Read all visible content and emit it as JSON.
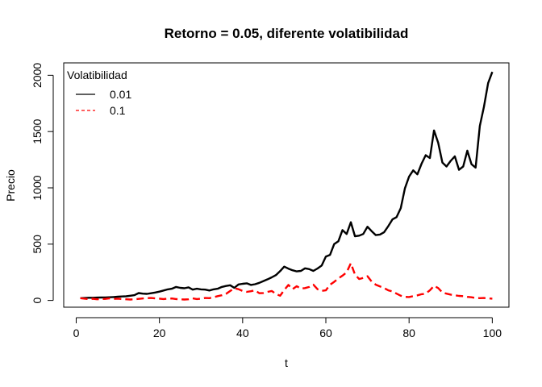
{
  "chart_data": {
    "type": "line",
    "title": "Retorno = 0.05, diferente volatibilidad",
    "xlabel": "t",
    "ylabel": "Precio",
    "xlim": [
      -3.0,
      104.0
    ],
    "ylim": [
      -60,
      2110
    ],
    "xticks": [
      0,
      20,
      40,
      60,
      80,
      100
    ],
    "yticks": [
      0,
      500,
      1000,
      1500,
      2000
    ],
    "grid": false,
    "legend": {
      "title": "Volatibilidad",
      "position": "top-left"
    },
    "series": [
      {
        "name": "0.01",
        "color": "#000000",
        "line_style": "solid",
        "x": [
          1,
          2,
          3,
          4,
          5,
          6,
          7,
          8,
          9,
          10,
          11,
          12,
          13,
          14,
          15,
          16,
          17,
          18,
          19,
          20,
          21,
          22,
          23,
          24,
          25,
          26,
          27,
          28,
          29,
          30,
          31,
          32,
          33,
          34,
          35,
          36,
          37,
          38,
          39,
          40,
          41,
          42,
          43,
          44,
          45,
          46,
          47,
          48,
          49,
          50,
          51,
          52,
          53,
          54,
          55,
          56,
          57,
          58,
          59,
          60,
          61,
          62,
          63,
          64,
          65,
          66,
          67,
          68,
          69,
          70,
          71,
          72,
          73,
          74,
          75,
          76,
          77,
          78,
          79,
          80,
          81,
          82,
          83,
          84,
          85,
          86,
          87,
          88,
          89,
          90,
          91,
          92,
          93,
          94,
          95,
          96,
          97,
          98,
          99,
          100
        ],
        "values": [
          20,
          22,
          24,
          24,
          25,
          26,
          27,
          28,
          30,
          33,
          35,
          37,
          42,
          47,
          65,
          60,
          58,
          64,
          70,
          78,
          88,
          98,
          104,
          120,
          112,
          108,
          116,
          96,
          104,
          98,
          96,
          88,
          98,
          104,
          120,
          128,
          135,
          112,
          142,
          148,
          152,
          138,
          144,
          156,
          172,
          188,
          205,
          225,
          260,
          300,
          282,
          268,
          258,
          262,
          285,
          278,
          262,
          284,
          310,
          390,
          405,
          500,
          525,
          625,
          590,
          695,
          570,
          575,
          590,
          655,
          615,
          580,
          585,
          605,
          660,
          720,
          740,
          820,
          995,
          1100,
          1155,
          1120,
          1215,
          1290,
          1265,
          1510,
          1400,
          1225,
          1190,
          1240,
          1280,
          1160,
          1190,
          1330,
          1210,
          1180,
          1550,
          1720,
          1930,
          2030
        ]
      },
      {
        "name": "0.1",
        "color": "#ff0000",
        "line_style": "dashed",
        "x": [
          1,
          2,
          3,
          4,
          5,
          6,
          7,
          8,
          9,
          10,
          11,
          12,
          13,
          14,
          15,
          16,
          17,
          18,
          19,
          20,
          21,
          22,
          23,
          24,
          25,
          26,
          27,
          28,
          29,
          30,
          31,
          32,
          33,
          34,
          35,
          36,
          37,
          38,
          39,
          40,
          41,
          42,
          43,
          44,
          45,
          46,
          47,
          48,
          49,
          50,
          51,
          52,
          53,
          54,
          55,
          56,
          57,
          58,
          59,
          60,
          61,
          62,
          63,
          64,
          65,
          66,
          67,
          68,
          69,
          70,
          71,
          72,
          73,
          74,
          75,
          76,
          77,
          78,
          79,
          80,
          81,
          82,
          83,
          84,
          85,
          86,
          87,
          88,
          89,
          90,
          91,
          92,
          93,
          94,
          95,
          96,
          97,
          98,
          99,
          100
        ],
        "values": [
          20,
          16,
          12,
          15,
          10,
          12,
          14,
          18,
          14,
          16,
          12,
          10,
          8,
          10,
          14,
          17,
          20,
          22,
          18,
          16,
          12,
          16,
          17,
          12,
          10,
          8,
          10,
          18,
          12,
          16,
          22,
          20,
          28,
          38,
          46,
          58,
          84,
          108,
          100,
          84,
          76,
          82,
          90,
          64,
          66,
          76,
          84,
          58,
          42,
          92,
          138,
          100,
          126,
          105,
          110,
          120,
          140,
          100,
          85,
          90,
          140,
          165,
          195,
          220,
          250,
          330,
          230,
          190,
          200,
          215,
          168,
          140,
          125,
          110,
          90,
          80,
          60,
          42,
          32,
          30,
          38,
          45,
          55,
          60,
          90,
          130,
          110,
          70,
          60,
          52,
          46,
          40,
          38,
          32,
          28,
          22,
          20,
          22,
          18,
          16
        ]
      }
    ]
  }
}
